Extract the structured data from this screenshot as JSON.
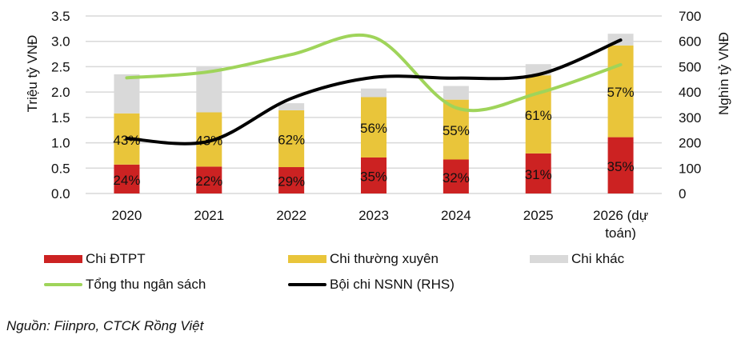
{
  "chart_data": {
    "type": "bar",
    "stacked": true,
    "categories": [
      "2020",
      "2021",
      "2022",
      "2023",
      "2024",
      "2025",
      "2026 (dự toán)"
    ],
    "category_lines": [
      [
        "2020"
      ],
      [
        "2021"
      ],
      [
        "2022"
      ],
      [
        "2023"
      ],
      [
        "2024"
      ],
      [
        "2025"
      ],
      [
        "2026 (dự",
        "toán)"
      ]
    ],
    "ylabel": "Triệu tỷ VNĐ",
    "y2label": "Nghìn tỷ VNĐ",
    "ylim": [
      0,
      3.5
    ],
    "y2lim": [
      0,
      700
    ],
    "yticks": [
      "0.0",
      "0.5",
      "1.0",
      "1.5",
      "2.0",
      "2.5",
      "3.0",
      "3.5"
    ],
    "y2ticks": [
      "0",
      "100",
      "200",
      "300",
      "400",
      "500",
      "600",
      "700"
    ],
    "grid": true,
    "legend_position": "bottom",
    "series": [
      {
        "name": "Chi ĐTPT",
        "kind": "bar",
        "axis": "left",
        "color": "#cc2222",
        "values": [
          0.57,
          0.53,
          0.52,
          0.71,
          0.67,
          0.79,
          1.11
        ],
        "labels": [
          "24%",
          "22%",
          "29%",
          "35%",
          "32%",
          "31%",
          "35%"
        ]
      },
      {
        "name": "Chi thường xuyên",
        "kind": "bar",
        "axis": "left",
        "color": "#e9c53a",
        "values": [
          1.01,
          1.07,
          1.12,
          1.19,
          1.18,
          1.54,
          1.81
        ],
        "labels": [
          "43%",
          "43%",
          "62%",
          "56%",
          "55%",
          "61%",
          "57%"
        ]
      },
      {
        "name": "Chi khác",
        "kind": "bar",
        "axis": "left",
        "color": "#d9d9d9",
        "values": [
          0.77,
          0.89,
          0.14,
          0.17,
          0.27,
          0.22,
          0.23
        ]
      },
      {
        "name": "Tổng thu ngân sách",
        "kind": "line",
        "axis": "left",
        "color": "#9fd45a",
        "values": [
          2.28,
          2.4,
          2.74,
          3.08,
          1.69,
          1.98,
          2.54
        ]
      },
      {
        "name": "Bội chi NSNN (RHS)",
        "kind": "line",
        "axis": "right",
        "color": "#000000",
        "values": [
          217,
          206,
          375,
          458,
          455,
          469,
          605
        ]
      }
    ]
  },
  "source": "Nguồn: Fiinpro, CTCK Rồng Việt"
}
